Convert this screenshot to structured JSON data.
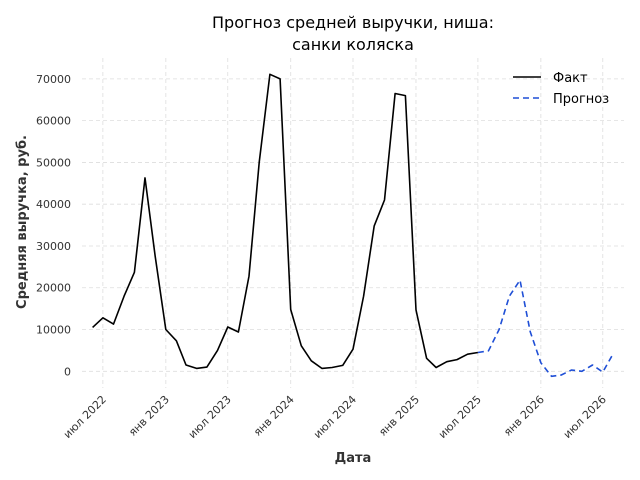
{
  "chart_data": {
    "type": "line",
    "title_lines": [
      "Прогноз средней выручки, ниша:",
      "санки коляска"
    ],
    "xlabel": "Дата",
    "ylabel": "Средняя выручка, руб.",
    "ylim": [
      -4000,
      75000
    ],
    "yticks": [
      0,
      10000,
      20000,
      30000,
      40000,
      50000,
      60000,
      70000
    ],
    "xlim": [
      "2022-05-01",
      "2026-09-01"
    ],
    "xticks": [
      {
        "date": "2022-07-01",
        "label": "июл 2022"
      },
      {
        "date": "2023-01-01",
        "label": "янв 2023"
      },
      {
        "date": "2023-07-01",
        "label": "июл 2023"
      },
      {
        "date": "2024-01-01",
        "label": "янв 2024"
      },
      {
        "date": "2024-07-01",
        "label": "июл 2024"
      },
      {
        "date": "2025-01-01",
        "label": "янв 2025"
      },
      {
        "date": "2025-07-01",
        "label": "июл 2025"
      },
      {
        "date": "2026-01-01",
        "label": "янв 2026"
      },
      {
        "date": "2026-07-01",
        "label": "июл 2026"
      }
    ],
    "grid": true,
    "legend_position": "top-right",
    "series": [
      {
        "name": "Факт",
        "color": "#000000",
        "style": "solid",
        "x": [
          "2022-06-01",
          "2022-07-01",
          "2022-08-01",
          "2022-09-01",
          "2022-10-01",
          "2022-11-01",
          "2022-12-01",
          "2023-01-01",
          "2023-02-01",
          "2023-03-01",
          "2023-04-01",
          "2023-05-01",
          "2023-06-01",
          "2023-07-01",
          "2023-08-01",
          "2023-09-01",
          "2023-10-01",
          "2023-11-01",
          "2023-12-01",
          "2024-01-01",
          "2024-02-01",
          "2024-03-01",
          "2024-04-01",
          "2024-05-01",
          "2024-06-01",
          "2024-07-01",
          "2024-08-01",
          "2024-09-01",
          "2024-10-01",
          "2024-11-01",
          "2024-12-01",
          "2025-01-01",
          "2025-02-01",
          "2025-03-01",
          "2025-04-01",
          "2025-05-01",
          "2025-06-01",
          "2025-07-01"
        ],
        "y": [
          10500,
          12800,
          11300,
          18000,
          23700,
          46300,
          27500,
          10000,
          7300,
          1500,
          700,
          1000,
          5000,
          10600,
          9400,
          22800,
          50000,
          71100,
          70000,
          14800,
          6100,
          2500,
          700,
          900,
          1400,
          5300,
          18000,
          34800,
          41000,
          66500,
          66000,
          14700,
          3100,
          900,
          2300,
          2800,
          4100,
          4500
        ]
      },
      {
        "name": "Прогноз",
        "color": "#1f4fd6",
        "style": "dashed",
        "x": [
          "2025-07-01",
          "2025-08-01",
          "2025-09-01",
          "2025-10-01",
          "2025-11-01",
          "2025-12-01",
          "2026-01-01",
          "2026-02-01",
          "2026-03-01",
          "2026-04-01",
          "2026-05-01",
          "2026-06-01",
          "2026-07-01",
          "2026-08-01"
        ],
        "y": [
          4500,
          4900,
          10000,
          18000,
          21800,
          9500,
          2000,
          -1200,
          -900,
          300,
          0,
          1500,
          -200,
          4300
        ]
      }
    ]
  }
}
